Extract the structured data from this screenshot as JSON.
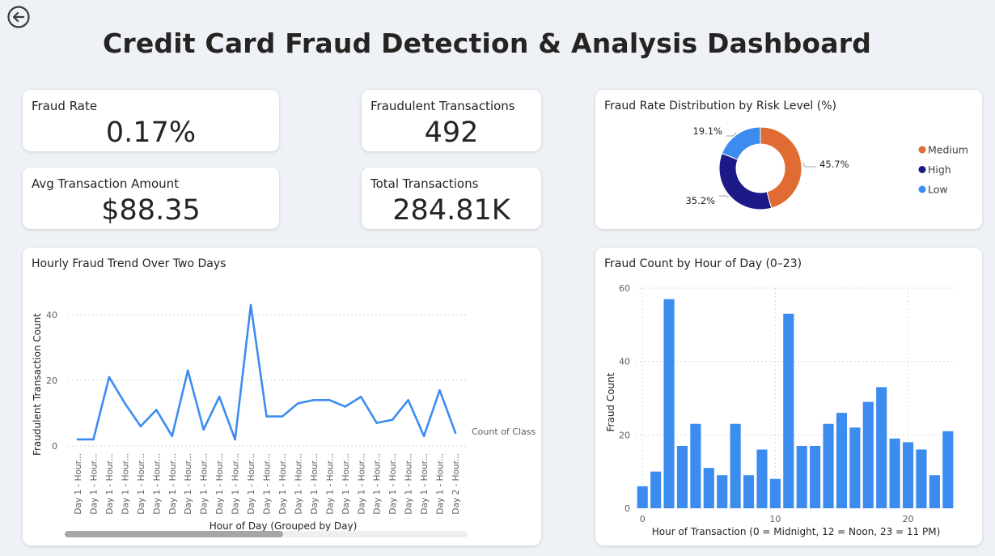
{
  "page": {
    "title": "Credit Card Fraud Detection & Analysis Dashboard",
    "back_icon": "back-arrow-icon"
  },
  "kpis": {
    "fraud_rate": {
      "label": "Fraud Rate",
      "value": "0.17%"
    },
    "fraudulent_transactions": {
      "label": "Fraudulent Transactions",
      "value": "492"
    },
    "avg_amount": {
      "label": "Avg Transaction Amount",
      "value": "$88.35"
    },
    "total_transactions": {
      "label": "Total Transactions",
      "value": "284.81K"
    }
  },
  "chart_data": [
    {
      "id": "risk-donut",
      "type": "pie",
      "title": "Fraud Rate Distribution by Risk Level (%)",
      "categories": [
        "Medium",
        "High",
        "Low"
      ],
      "values": [
        45.7,
        35.2,
        19.1
      ],
      "value_labels": [
        "45.7%",
        "35.2%",
        "19.1%"
      ],
      "colors": [
        "#e06c34",
        "#1b1a86",
        "#3c8cf0"
      ],
      "legend": "right"
    },
    {
      "id": "hourly-trend",
      "type": "line",
      "title": "Hourly Fraud Trend Over Two Days",
      "xlabel": "Hour of Day (Grouped by Day)",
      "ylabel": "Fraudulent Transaction Count",
      "categories": [
        "Day 1 - Hour...",
        "Day 1 - Hour...",
        "Day 1 - Hour...",
        "Day 1 - Hour...",
        "Day 1 - Hour...",
        "Day 1 - Hour...",
        "Day 1 - Hour...",
        "Day 1 - Hour...",
        "Day 1 - Hour...",
        "Day 1 - Hour...",
        "Day 1 - Hour...",
        "Day 1 - Hour...",
        "Day 1 - Hour...",
        "Day 1 - Hour...",
        "Day 1 - Hour...",
        "Day 1 - Hour...",
        "Day 1 - Hour...",
        "Day 1 - Hour...",
        "Day 1 - Hour...",
        "Day 1 - Hour...",
        "Day 1 - Hour...",
        "Day 1 - Hour...",
        "Day 1 - Hour...",
        "Day 1 - Hour...",
        "Day 2 - Hour..."
      ],
      "series": [
        {
          "name": "Count of Class",
          "values": [
            2,
            2,
            21,
            13,
            6,
            11,
            3,
            23,
            5,
            15,
            2,
            43,
            9,
            9,
            13,
            14,
            14,
            12,
            15,
            7,
            8,
            14,
            3,
            17,
            4
          ]
        }
      ],
      "yticks": [
        0,
        20,
        40
      ],
      "ylim": [
        0,
        46
      ],
      "grid": true,
      "color": "#3c8cf0"
    },
    {
      "id": "hour-bars",
      "type": "bar",
      "title": "Fraud Count by Hour of Day (0–23)",
      "xlabel": "Hour of Transaction (0 = Midnight, 12 = Noon, 23 = 11 PM)",
      "ylabel": "Fraud Count",
      "x": [
        0,
        1,
        2,
        3,
        4,
        5,
        6,
        7,
        8,
        9,
        10,
        11,
        12,
        13,
        14,
        15,
        16,
        17,
        18,
        19,
        20,
        21,
        22,
        23
      ],
      "values": [
        6,
        10,
        57,
        17,
        23,
        11,
        9,
        23,
        9,
        16,
        8,
        53,
        17,
        17,
        23,
        26,
        22,
        29,
        33,
        19,
        18,
        16,
        9,
        21
      ],
      "xticks": [
        0,
        10,
        20
      ],
      "yticks": [
        0,
        20,
        40,
        60
      ],
      "ylim": [
        0,
        60
      ],
      "xlim": [
        -0.5,
        23.5
      ],
      "grid": true,
      "color": "#3c8cf0"
    }
  ]
}
